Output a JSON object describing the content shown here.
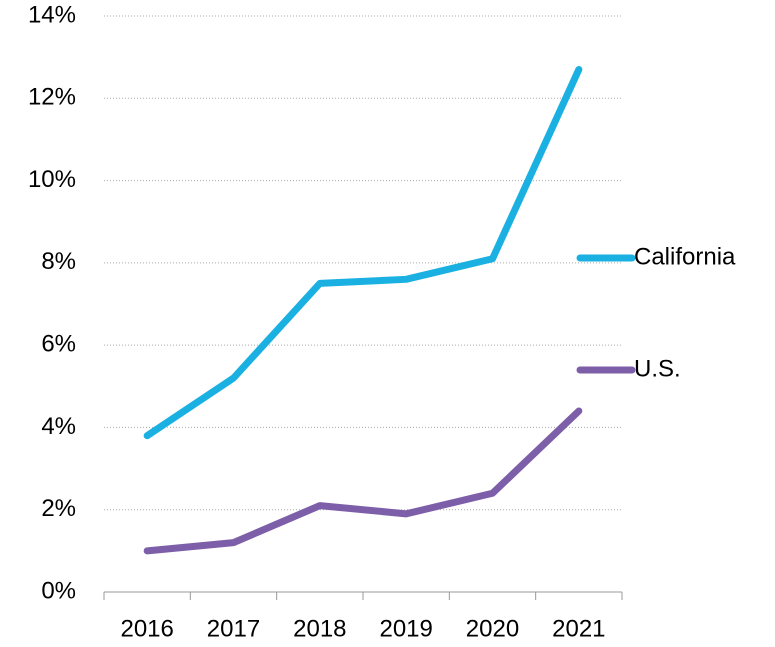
{
  "chart_data": {
    "type": "line",
    "categories": [
      "2016",
      "2017",
      "2018",
      "2019",
      "2020",
      "2021"
    ],
    "series": [
      {
        "name": "California",
        "color": "#1ab1e2",
        "values": [
          3.8,
          5.2,
          7.5,
          7.6,
          8.1,
          12.7
        ]
      },
      {
        "name": "U.S.",
        "color": "#7d5ea8",
        "values": [
          1.0,
          1.2,
          2.1,
          1.9,
          2.4,
          4.4
        ]
      }
    ],
    "ylim": [
      0,
      14
    ],
    "yticks": [
      {
        "value": 0,
        "label": "0%"
      },
      {
        "value": 2,
        "label": "2%"
      },
      {
        "value": 4,
        "label": "4%"
      },
      {
        "value": 6,
        "label": "6%"
      },
      {
        "value": 8,
        "label": "8%"
      },
      {
        "value": 10,
        "label": "10%"
      },
      {
        "value": 12,
        "label": "12%"
      },
      {
        "value": 14,
        "label": "14%"
      }
    ],
    "grid": true,
    "legend": "right"
  }
}
